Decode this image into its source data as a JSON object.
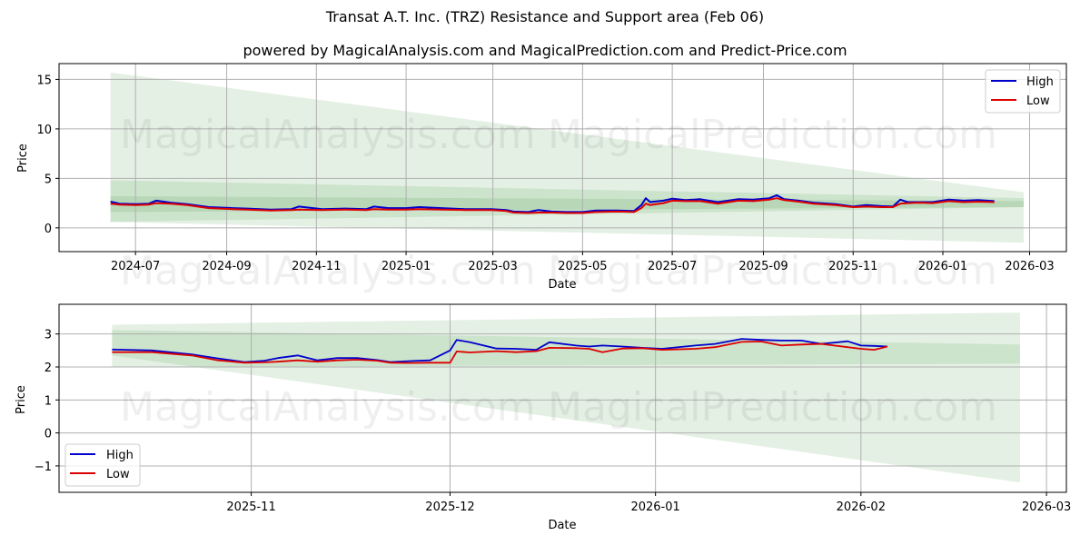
{
  "header": {
    "title": "Transat A.T. Inc. (TRZ) Resistance and Support area (Feb 06)",
    "subtitle": "powered by MagicalAnalysis.com and MagicalPrediction.com and Predict-Price.com"
  },
  "watermarks": [
    "MagicalAnalysis.com",
    "MagicalPrediction.com"
  ],
  "colors": {
    "high": "#0000cc",
    "low": "#dd0000",
    "band_light": "#e3f0e3",
    "band_mid": "#cde6cd",
    "grid": "#b0b0b0"
  },
  "chart_data": [
    {
      "type": "line",
      "title": "Transat A.T. Inc. (TRZ) Resistance and Support area (Feb 06)",
      "xlabel": "Date",
      "ylabel": "Price",
      "ylim": [
        -2.4,
        16.6
      ],
      "yticks": [
        0,
        5,
        10,
        15
      ],
      "xticks": [
        "2024-07",
        "2024-09",
        "2024-11",
        "2025-01",
        "2025-03",
        "2025-05",
        "2025-07",
        "2025-09",
        "2025-11",
        "2026-01",
        "2026-03"
      ],
      "grid": true,
      "legend": {
        "position": "upper right",
        "entries": [
          "High",
          "Low"
        ]
      },
      "x": [
        "2024-06-14",
        "2024-06-20",
        "2024-07-01",
        "2024-07-10",
        "2024-07-15",
        "2024-07-25",
        "2024-08-05",
        "2024-08-20",
        "2024-09-05",
        "2024-09-15",
        "2024-10-01",
        "2024-10-15",
        "2024-10-20",
        "2024-11-05",
        "2024-11-20",
        "2024-12-05",
        "2024-12-10",
        "2024-12-20",
        "2025-01-01",
        "2025-01-10",
        "2025-01-25",
        "2025-02-10",
        "2025-02-28",
        "2025-03-10",
        "2025-03-15",
        "2025-03-25",
        "2025-04-01",
        "2025-04-10",
        "2025-04-20",
        "2025-05-01",
        "2025-05-10",
        "2025-05-25",
        "2025-06-05",
        "2025-06-10",
        "2025-06-13",
        "2025-06-16",
        "2025-06-25",
        "2025-07-01",
        "2025-07-10",
        "2025-07-20",
        "2025-08-01",
        "2025-08-15",
        "2025-08-25",
        "2025-09-05",
        "2025-09-10",
        "2025-09-15",
        "2025-09-25",
        "2025-10-05",
        "2025-10-20",
        "2025-11-01",
        "2025-11-10",
        "2025-11-20",
        "2025-11-28",
        "2025-12-03",
        "2025-12-08",
        "2025-12-15",
        "2025-12-25",
        "2026-01-05",
        "2026-01-15",
        "2026-01-25",
        "2026-02-05"
      ],
      "series": [
        {
          "name": "High",
          "values": [
            2.65,
            2.45,
            2.4,
            2.45,
            2.75,
            2.55,
            2.4,
            2.1,
            2.0,
            1.95,
            1.85,
            1.9,
            2.15,
            1.9,
            1.95,
            1.9,
            2.15,
            2.0,
            2.0,
            2.1,
            2.0,
            1.9,
            1.9,
            1.8,
            1.65,
            1.6,
            1.8,
            1.65,
            1.6,
            1.6,
            1.75,
            1.75,
            1.7,
            2.3,
            3.0,
            2.6,
            2.75,
            2.95,
            2.8,
            2.9,
            2.6,
            2.9,
            2.85,
            3.0,
            3.3,
            2.9,
            2.75,
            2.55,
            2.4,
            2.15,
            2.3,
            2.2,
            2.15,
            2.85,
            2.6,
            2.6,
            2.6,
            2.85,
            2.75,
            2.8,
            2.7
          ]
        },
        {
          "name": "Low",
          "values": [
            2.45,
            2.35,
            2.3,
            2.35,
            2.5,
            2.45,
            2.3,
            2.0,
            1.9,
            1.85,
            1.75,
            1.8,
            1.85,
            1.8,
            1.85,
            1.8,
            1.9,
            1.85,
            1.85,
            1.9,
            1.85,
            1.8,
            1.8,
            1.7,
            1.55,
            1.5,
            1.55,
            1.55,
            1.5,
            1.5,
            1.6,
            1.65,
            1.6,
            2.0,
            2.45,
            2.3,
            2.5,
            2.75,
            2.7,
            2.7,
            2.45,
            2.75,
            2.7,
            2.85,
            3.0,
            2.8,
            2.65,
            2.45,
            2.3,
            2.1,
            2.15,
            2.1,
            2.1,
            2.45,
            2.5,
            2.55,
            2.5,
            2.7,
            2.6,
            2.65,
            2.6
          ]
        }
      ],
      "bands": [
        {
          "name": "outer-area",
          "x": [
            "2024-06-14",
            "2026-02-25"
          ],
          "upper": [
            15.7,
            3.6
          ],
          "lower": [
            0.6,
            -1.5
          ]
        },
        {
          "name": "inner-area",
          "x": [
            "2024-06-14",
            "2026-02-25"
          ],
          "upper": [
            4.8,
            3.0
          ],
          "lower": [
            0.6,
            2.1
          ]
        },
        {
          "name": "core-area",
          "x": [
            "2024-06-14",
            "2026-02-25"
          ],
          "upper": [
            3.2,
            2.7
          ],
          "lower": [
            1.6,
            2.1
          ]
        }
      ]
    },
    {
      "type": "line",
      "xlabel": "Date",
      "ylabel": "Price",
      "ylim": [
        -1.8,
        3.9
      ],
      "yticks": [
        -1,
        0,
        1,
        2,
        3
      ],
      "xticks": [
        "2025-11",
        "2025-12",
        "2026-01",
        "2026-02",
        "2026-03"
      ],
      "grid": true,
      "legend": {
        "position": "lower left",
        "entries": [
          "High",
          "Low"
        ]
      },
      "x": [
        "2025-10-11",
        "2025-10-17",
        "2025-10-23",
        "2025-10-27",
        "2025-10-31",
        "2025-11-03",
        "2025-11-05",
        "2025-11-08",
        "2025-11-11",
        "2025-11-14",
        "2025-11-17",
        "2025-11-20",
        "2025-11-22",
        "2025-11-25",
        "2025-11-28",
        "2025-12-01",
        "2025-12-02",
        "2025-12-04",
        "2025-12-08",
        "2025-12-11",
        "2025-12-14",
        "2025-12-16",
        "2025-12-20",
        "2025-12-22",
        "2025-12-24",
        "2025-12-27",
        "2025-12-30",
        "2026-01-02",
        "2026-01-07",
        "2026-01-10",
        "2026-01-14",
        "2026-01-17",
        "2026-01-20",
        "2026-01-23",
        "2026-01-26",
        "2026-01-30",
        "2026-02-01",
        "2026-02-03",
        "2026-02-05"
      ],
      "series": [
        {
          "name": "High",
          "values": [
            2.53,
            2.5,
            2.38,
            2.26,
            2.15,
            2.19,
            2.27,
            2.35,
            2.2,
            2.27,
            2.27,
            2.21,
            2.15,
            2.18,
            2.2,
            2.5,
            2.82,
            2.75,
            2.56,
            2.55,
            2.52,
            2.75,
            2.65,
            2.62,
            2.65,
            2.62,
            2.58,
            2.55,
            2.65,
            2.7,
            2.85,
            2.82,
            2.8,
            2.8,
            2.7,
            2.78,
            2.65,
            2.64,
            2.62
          ]
        },
        {
          "name": "Low",
          "values": [
            2.45,
            2.45,
            2.35,
            2.2,
            2.13,
            2.14,
            2.16,
            2.2,
            2.16,
            2.2,
            2.22,
            2.19,
            2.13,
            2.12,
            2.13,
            2.13,
            2.47,
            2.44,
            2.48,
            2.45,
            2.48,
            2.58,
            2.57,
            2.55,
            2.45,
            2.56,
            2.57,
            2.52,
            2.55,
            2.6,
            2.76,
            2.77,
            2.65,
            2.68,
            2.7,
            2.6,
            2.55,
            2.52,
            2.62
          ]
        }
      ],
      "bands": [
        {
          "name": "outer-area",
          "x": [
            "2025-10-11",
            "2026-02-25"
          ],
          "upper": [
            3.28,
            3.65
          ],
          "lower": [
            2.35,
            -1.5
          ]
        },
        {
          "name": "inner-area",
          "x": [
            "2025-10-11",
            "2026-02-25"
          ],
          "upper": [
            3.12,
            2.68
          ],
          "lower": [
            2.0,
            2.1
          ]
        }
      ]
    }
  ]
}
